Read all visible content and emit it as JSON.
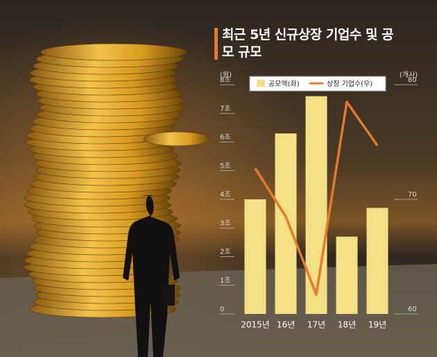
{
  "chart_data": {
    "type": "combo",
    "title": "최근 5년 신규상장 기업수 및 공모 규모",
    "y_unit": "(원)",
    "y2_unit": "(개사)",
    "categories": [
      "2015년",
      "16년",
      "17년",
      "18년",
      "19년"
    ],
    "series": [
      {
        "name": "공모액(좌)",
        "type": "bar",
        "color": "#f3df84",
        "values": [
          4.0,
          6.3,
          7.6,
          2.7,
          3.7
        ]
      },
      {
        "name": "상장 기업수(우)",
        "type": "line",
        "axis": "y2",
        "color": "#e8782a",
        "values": [
          72.7,
          68.5,
          61.7,
          78.5,
          74.7
        ]
      }
    ],
    "ylim": [
      0,
      8
    ],
    "yticks": [
      0,
      {
        "value": 1,
        "label": "1조"
      },
      {
        "value": 2,
        "label": "2조"
      },
      {
        "value": 3,
        "label": "3조"
      },
      {
        "value": 4,
        "label": "4조"
      },
      {
        "value": 5,
        "label": "5조"
      },
      {
        "value": 6,
        "label": "6조"
      },
      {
        "value": 7,
        "label": "7조"
      },
      {
        "value": 8,
        "label": "8조"
      }
    ],
    "y2lim": [
      60,
      80
    ],
    "y2ticks": [
      60,
      70,
      80
    ]
  }
}
